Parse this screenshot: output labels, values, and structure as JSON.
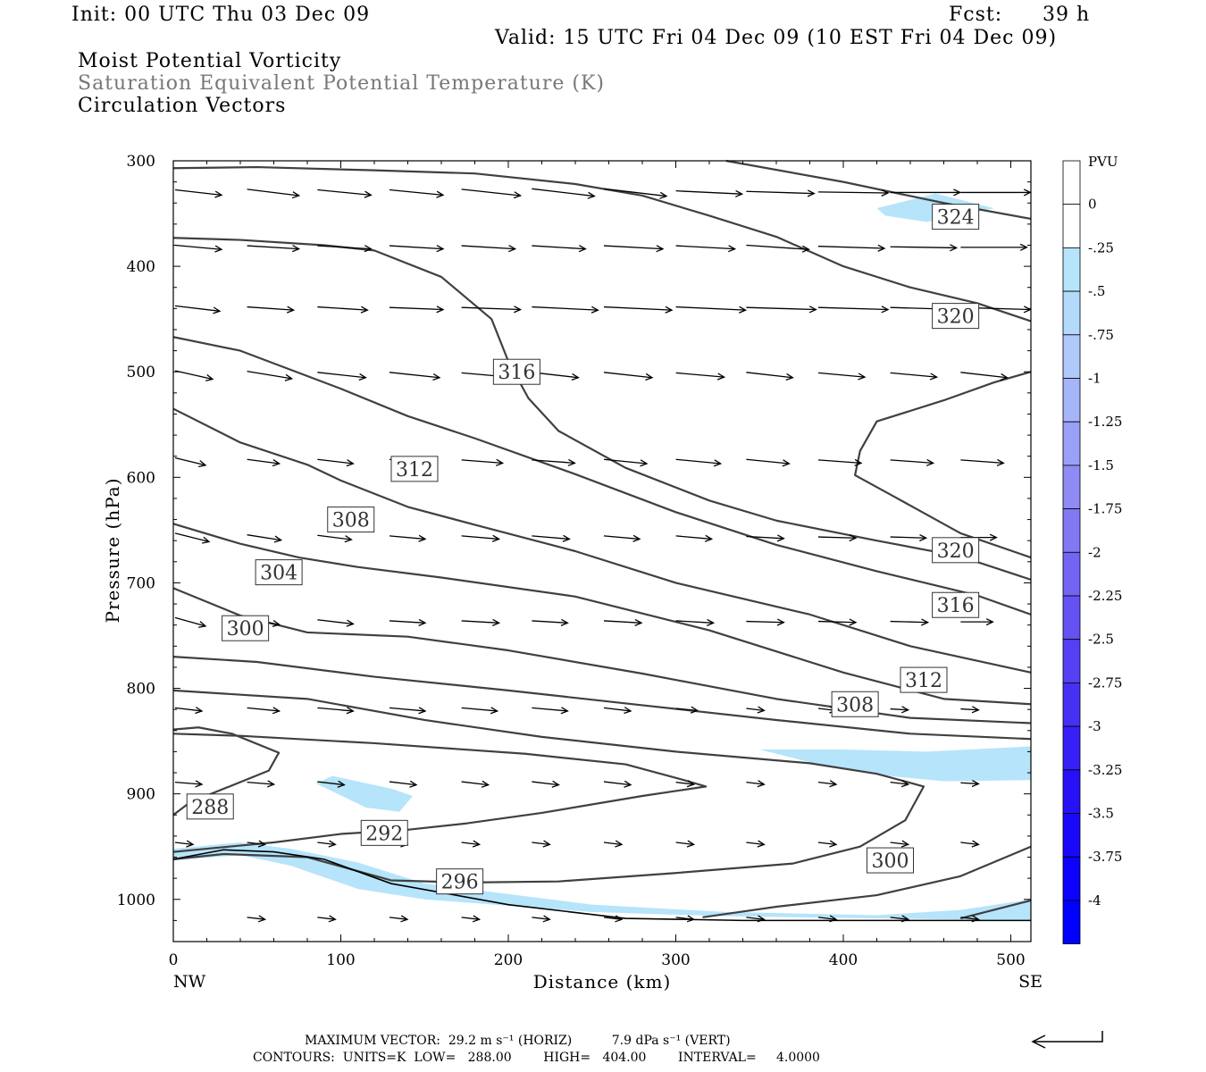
{
  "header": {
    "init": "Init: 00 UTC Thu 03 Dec 09",
    "fcst_label": "Fcst:",
    "fcst_hours": "39 h",
    "valid": "Valid: 15 UTC Fri 04 Dec 09 (10 EST Fri 04 Dec 09)"
  },
  "fields": {
    "line1": "Moist Potential Vorticity",
    "line2": "Saturation Equivalent Potential Temperature (K)",
    "line3": "Circulation Vectors"
  },
  "colors": {
    "contour": "#404040",
    "vector": "#000000",
    "shade_light": "#b6e4fb"
  },
  "chart_data": {
    "type": "cross-section",
    "xlabel": "Distance (km)",
    "ylabel": "Pressure (hPa)",
    "xlim": [
      0,
      512
    ],
    "ylim": [
      1040,
      300
    ],
    "x_ticks": [
      "0",
      "100",
      "200",
      "300",
      "400",
      "500"
    ],
    "x_tick_values": [
      0,
      100,
      200,
      300,
      400,
      500
    ],
    "y_ticks": [
      "300",
      "400",
      "500",
      "600",
      "700",
      "800",
      "900",
      "1000"
    ],
    "y_tick_values": [
      300,
      400,
      500,
      600,
      700,
      800,
      900,
      1000
    ],
    "endpoints": {
      "left": "NW",
      "right": "SE"
    },
    "colorbar": {
      "unit": "PVU",
      "labels": [
        "0",
        "-.25",
        "-.5",
        "-.75",
        "-1",
        "-1.25",
        "-1.5",
        "-1.75",
        "-2",
        "-2.25",
        "-2.5",
        "-2.75",
        "-3",
        "-3.25",
        "-3.5",
        "-3.75",
        "-4"
      ],
      "colors": [
        "#ffffff",
        "#ffffff",
        "#b6e4fb",
        "#b3d9fb",
        "#afc9fa",
        "#a6b5f8",
        "#9aa0f6",
        "#8f8bf4",
        "#8278f3",
        "#7364f3",
        "#6452f3",
        "#5540f3",
        "#4530f4",
        "#3720f5",
        "#2810f7",
        "#1a08f9",
        "#0c02fc",
        "#0000ff"
      ]
    },
    "contours": [
      {
        "label": "288",
        "points": [
          [
            0,
            839
          ],
          [
            15,
            837
          ],
          [
            35,
            843
          ],
          [
            63,
            861
          ],
          [
            57,
            878
          ],
          [
            10,
            908
          ],
          [
            0,
            920
          ]
        ]
      },
      {
        "label": "292",
        "points": [
          [
            0,
            955
          ],
          [
            20,
            952
          ],
          [
            60,
            946
          ],
          [
            100,
            938
          ],
          [
            140,
            934
          ],
          [
            175,
            928
          ],
          [
            220,
            918
          ],
          [
            280,
            902
          ],
          [
            318,
            893
          ],
          [
            305,
            887
          ],
          [
            270,
            872
          ],
          [
            210,
            862
          ],
          [
            120,
            852
          ],
          [
            40,
            845
          ],
          [
            0,
            843
          ]
        ]
      },
      {
        "label": "296",
        "points": [
          [
            0,
            962
          ],
          [
            30,
            957
          ],
          [
            80,
            960
          ],
          [
            130,
            982
          ],
          [
            175,
            984
          ],
          [
            230,
            983
          ],
          [
            300,
            975
          ],
          [
            370,
            966
          ],
          [
            410,
            950
          ],
          [
            437,
            925
          ],
          [
            448,
            893
          ],
          [
            420,
            881
          ],
          [
            380,
            871
          ],
          [
            300,
            860
          ],
          [
            220,
            846
          ],
          [
            150,
            830
          ],
          [
            80,
            810
          ],
          [
            0,
            802
          ]
        ]
      },
      {
        "label": "300",
        "points": [
          [
            0,
            770
          ],
          [
            50,
            775
          ],
          [
            120,
            789
          ],
          [
            200,
            802
          ],
          [
            280,
            816
          ],
          [
            360,
            830
          ],
          [
            440,
            843
          ],
          [
            512,
            848
          ]
        ]
      },
      {
        "label": "300",
        "points": [
          [
            316,
            1017
          ],
          [
            360,
            1007
          ],
          [
            420,
            996
          ],
          [
            470,
            978
          ],
          [
            512,
            950
          ]
        ]
      },
      {
        "label": "304",
        "points": [
          [
            0,
            705
          ],
          [
            40,
            731
          ],
          [
            80,
            747
          ],
          [
            140,
            751
          ],
          [
            200,
            764
          ],
          [
            280,
            786
          ],
          [
            360,
            810
          ],
          [
            440,
            828
          ],
          [
            512,
            833
          ]
        ]
      },
      {
        "label": "304",
        "points": [
          [
            470,
            1018
          ],
          [
            512,
            1001
          ]
        ]
      },
      {
        "label": "308",
        "points": [
          [
            0,
            644
          ],
          [
            40,
            663
          ],
          [
            75,
            676
          ],
          [
            110,
            685
          ],
          [
            160,
            695
          ],
          [
            240,
            713
          ],
          [
            320,
            745
          ],
          [
            400,
            785
          ],
          [
            460,
            810
          ],
          [
            512,
            815
          ]
        ]
      },
      {
        "label": "312",
        "points": [
          [
            0,
            535
          ],
          [
            40,
            567
          ],
          [
            80,
            588
          ],
          [
            100,
            603
          ],
          [
            140,
            628
          ],
          [
            180,
            645
          ],
          [
            240,
            670
          ],
          [
            300,
            700
          ],
          [
            380,
            730
          ],
          [
            440,
            760
          ],
          [
            512,
            785
          ]
        ]
      },
      {
        "label": "316",
        "points": [
          [
            0,
            467
          ],
          [
            40,
            480
          ],
          [
            100,
            516
          ],
          [
            140,
            542
          ],
          [
            180,
            563
          ],
          [
            240,
            597
          ],
          [
            300,
            633
          ],
          [
            360,
            664
          ],
          [
            420,
            689
          ],
          [
            480,
            712
          ],
          [
            512,
            730
          ]
        ]
      },
      {
        "label": "316",
        "points": [
          [
            0,
            373
          ],
          [
            40,
            375
          ],
          [
            90,
            380
          ],
          [
            120,
            385
          ],
          [
            160,
            410
          ],
          [
            190,
            450
          ],
          [
            200,
            490
          ],
          [
            212,
            525
          ],
          [
            230,
            556
          ],
          [
            270,
            591
          ],
          [
            320,
            622
          ],
          [
            360,
            641
          ],
          [
            420,
            660
          ],
          [
            470,
            675
          ],
          [
            512,
            697
          ]
        ]
      },
      {
        "label": "320",
        "points": [
          [
            0,
            307
          ],
          [
            50,
            306
          ],
          [
            120,
            309
          ],
          [
            180,
            312
          ],
          [
            240,
            322
          ],
          [
            280,
            333
          ],
          [
            320,
            352
          ],
          [
            360,
            372
          ],
          [
            400,
            400
          ],
          [
            440,
            420
          ],
          [
            480,
            435
          ],
          [
            512,
            452
          ]
        ]
      },
      {
        "label": "320",
        "points": [
          [
            512,
            500
          ],
          [
            490,
            510
          ],
          [
            460,
            527
          ],
          [
            420,
            547
          ],
          [
            410,
            575
          ],
          [
            407,
            598
          ],
          [
            430,
            618
          ],
          [
            470,
            653
          ],
          [
            512,
            676
          ]
        ]
      },
      {
        "label": "324",
        "points": [
          [
            330,
            300
          ],
          [
            400,
            320
          ],
          [
            460,
            340
          ],
          [
            512,
            355
          ]
        ]
      }
    ],
    "contour_labels": [
      {
        "text": "288",
        "x": 22,
        "y": 912
      },
      {
        "text": "292",
        "x": 126,
        "y": 937
      },
      {
        "text": "296",
        "x": 171,
        "y": 983
      },
      {
        "text": "300",
        "x": 428,
        "y": 963
      },
      {
        "text": "300",
        "x": 43,
        "y": 743
      },
      {
        "text": "304",
        "x": 63,
        "y": 690
      },
      {
        "text": "308",
        "x": 106,
        "y": 640
      },
      {
        "text": "308",
        "x": 407,
        "y": 815
      },
      {
        "text": "312",
        "x": 144,
        "y": 592
      },
      {
        "text": "312",
        "x": 448,
        "y": 792
      },
      {
        "text": "316",
        "x": 205,
        "y": 500
      },
      {
        "text": "316",
        "x": 467,
        "y": 721
      },
      {
        "text": "320",
        "x": 467,
        "y": 447
      },
      {
        "text": "320",
        "x": 467,
        "y": 669
      },
      {
        "text": "324",
        "x": 467,
        "y": 353
      }
    ],
    "shaded_regions": [
      {
        "level": "-.25",
        "points": [
          [
            420,
            345
          ],
          [
            455,
            331
          ],
          [
            490,
            345
          ],
          [
            450,
            358
          ],
          [
            425,
            352
          ]
        ]
      },
      {
        "level": "-.25",
        "points": [
          [
            95,
            883
          ],
          [
            130,
            895
          ],
          [
            143,
            902
          ],
          [
            135,
            917
          ],
          [
            115,
            913
          ],
          [
            85,
            890
          ]
        ]
      },
      {
        "level": "-.25",
        "points": [
          [
            0,
            952
          ],
          [
            40,
            946
          ],
          [
            70,
            952
          ],
          [
            110,
            965
          ],
          [
            150,
            985
          ],
          [
            250,
            1005
          ],
          [
            330,
            1012
          ],
          [
            420,
            1015
          ],
          [
            470,
            1010
          ],
          [
            512,
            1000
          ],
          [
            512,
            1020
          ],
          [
            420,
            1018
          ],
          [
            330,
            1016
          ],
          [
            250,
            1012
          ],
          [
            150,
            1000
          ],
          [
            110,
            990
          ],
          [
            70,
            968
          ],
          [
            40,
            958
          ],
          [
            0,
            963
          ]
        ]
      },
      {
        "level": "-.25",
        "points": [
          [
            350,
            858
          ],
          [
            400,
            858
          ],
          [
            450,
            860
          ],
          [
            512,
            855
          ],
          [
            512,
            887
          ],
          [
            460,
            888
          ],
          [
            420,
            882
          ],
          [
            380,
            870
          ]
        ]
      }
    ],
    "vectors": {
      "x": [
        0,
        43,
        85,
        128,
        171,
        213,
        256,
        299,
        341,
        384,
        427,
        469
      ],
      "p": [
        330,
        382,
        440,
        503,
        585,
        657,
        737,
        820,
        890,
        947,
        1018
      ],
      "p_start_index": [
        1,
        1,
        1,
        1,
        1,
        1,
        1,
        1,
        1,
        1,
        2
      ],
      "length_px": [
        [
          26,
          29,
          30,
          30,
          33,
          35,
          35,
          37,
          38,
          39,
          39,
          39
        ],
        [
          26,
          29,
          30,
          30,
          30,
          30,
          33,
          33,
          35,
          37,
          37,
          37
        ],
        [
          25,
          26,
          28,
          30,
          33,
          37,
          38,
          39,
          39,
          39,
          39,
          39
        ],
        [
          21,
          25,
          27,
          28,
          27,
          26,
          27,
          27,
          26,
          26,
          26,
          26
        ],
        [
          17,
          18,
          20,
          20,
          23,
          24,
          24,
          25,
          24,
          24,
          24,
          24
        ],
        [
          19,
          19,
          19,
          20,
          21,
          21,
          20,
          20,
          21,
          21,
          20,
          20
        ],
        [
          17,
          18,
          20,
          20,
          21,
          20,
          21,
          21,
          21,
          21,
          21,
          18
        ],
        [
          15,
          18,
          20,
          20,
          20,
          20,
          15,
          12,
          10,
          10,
          10,
          10
        ],
        [
          15,
          15,
          15,
          15,
          15,
          15,
          15,
          10,
          10,
          10,
          10,
          10
        ],
        [
          10,
          10,
          10,
          10,
          10,
          10,
          10,
          10,
          10,
          10,
          10,
          10
        ],
        [
          10,
          10,
          10,
          10,
          10,
          10,
          10,
          10,
          10,
          10,
          10,
          10
        ]
      ],
      "tilt_hpa": [
        [
          5,
          6,
          5,
          5,
          6,
          7,
          7,
          3,
          2,
          1,
          0,
          0
        ],
        [
          4,
          3,
          3,
          3,
          3,
          3,
          3,
          3,
          4,
          2,
          1,
          0
        ],
        [
          5,
          3,
          3,
          2,
          2,
          3,
          3,
          3,
          2,
          2,
          2,
          2
        ],
        [
          8,
          7,
          5,
          5,
          4,
          5,
          5,
          4,
          5,
          4,
          4,
          5
        ],
        [
          7,
          4,
          4,
          4,
          3,
          3,
          4,
          4,
          4,
          3,
          3,
          3
        ],
        [
          8,
          5,
          4,
          3,
          3,
          3,
          3,
          3,
          2,
          1,
          1,
          0
        ],
        [
          8,
          5,
          4,
          2,
          2,
          2,
          2,
          2,
          1,
          1,
          1,
          0
        ],
        [
          3,
          3,
          3,
          3,
          3,
          3,
          3,
          2,
          2,
          2,
          1,
          1
        ],
        [
          2,
          2,
          3,
          3,
          3,
          3,
          3,
          2,
          2,
          2,
          2,
          1
        ],
        [
          2,
          2,
          2,
          2,
          2,
          2,
          2,
          2,
          2,
          2,
          2,
          2
        ],
        [
          2,
          2,
          2,
          2,
          2,
          2,
          2,
          2,
          2,
          2,
          2,
          2
        ]
      ]
    },
    "terrain": {
      "points": [
        [
          0,
          962
        ],
        [
          30,
          953
        ],
        [
          60,
          955
        ],
        [
          90,
          962
        ],
        [
          130,
          985
        ],
        [
          200,
          1005
        ],
        [
          270,
          1018
        ],
        [
          340,
          1020
        ],
        [
          512,
          1020
        ]
      ]
    }
  },
  "footer": {
    "max_vector": "MAXIMUM VECTOR:  29.2 m s⁻¹ (HORIZ)          7.9 dPa s⁻¹ (VERT)",
    "contours": "CONTOURS:  UNITS=K  LOW=   288.00        HIGH=   404.00        INTERVAL=     4.0000"
  }
}
